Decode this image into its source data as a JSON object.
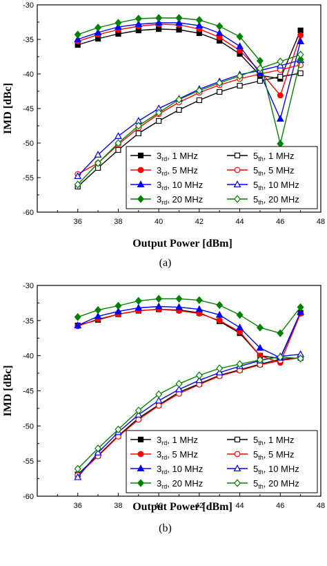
{
  "chart_data": [
    {
      "type": "line",
      "panel_label": "(a)",
      "xlabel": "Output Power [dBm]",
      "ylabel": "IMD [dBc]",
      "xlim": [
        34,
        48
      ],
      "ylim": [
        -60,
        -30
      ],
      "xticks": [
        36,
        38,
        40,
        42,
        44,
        46,
        48
      ],
      "yticks": [
        -30,
        -35,
        -40,
        -45,
        -50,
        -55,
        -60
      ],
      "grid": false,
      "legend_position": "bottom-right",
      "x": [
        36,
        37,
        38,
        39,
        40,
        41,
        42,
        43,
        44,
        45,
        46,
        47
      ],
      "series": [
        {
          "order": "3rd",
          "bw": "1 MHz",
          "color": "#000000",
          "marker": "square",
          "filled": true,
          "values": [
            -35.8,
            -34.9,
            -34.2,
            -33.7,
            -33.5,
            -33.6,
            -34.1,
            -35.2,
            -37.1,
            -40.2,
            -40.7,
            -33.7
          ]
        },
        {
          "order": "5th",
          "bw": "1 MHz",
          "color": "#000000",
          "marker": "square",
          "filled": false,
          "values": [
            -56.3,
            -53.6,
            -51.0,
            -48.6,
            -46.8,
            -45.2,
            -43.8,
            -42.6,
            -41.7,
            -41.0,
            -40.4,
            -39.9
          ]
        },
        {
          "order": "3rd",
          "bw": "5 MHz",
          "color": "#ff0000",
          "marker": "circle",
          "filled": true,
          "values": [
            -35.3,
            -34.3,
            -33.6,
            -33.1,
            -32.8,
            -32.9,
            -33.5,
            -34.7,
            -36.6,
            -39.6,
            -43.1,
            -34.4
          ]
        },
        {
          "order": "5th",
          "bw": "5 MHz",
          "color": "#ff0000",
          "marker": "circle",
          "filled": false,
          "values": [
            -54.5,
            -52.9,
            -50.2,
            -47.8,
            -45.8,
            -44.1,
            -42.7,
            -41.6,
            -40.7,
            -40.0,
            -39.4,
            -38.7
          ]
        },
        {
          "order": "3rd",
          "bw": "10 MHz",
          "color": "#0000ff",
          "marker": "triangle",
          "filled": true,
          "values": [
            -35.0,
            -34.0,
            -33.2,
            -32.8,
            -32.6,
            -32.6,
            -33.0,
            -34.1,
            -36.0,
            -39.9,
            -46.5,
            -35.3
          ]
        },
        {
          "order": "5th",
          "bw": "10 MHz",
          "color": "#0000ff",
          "marker": "triangle",
          "filled": false,
          "values": [
            -54.8,
            -51.7,
            -49.0,
            -46.8,
            -45.0,
            -43.6,
            -42.2,
            -41.1,
            -40.1,
            -39.5,
            -38.8,
            -38.0
          ]
        },
        {
          "order": "3rd",
          "bw": "20 MHz",
          "color": "#008000",
          "marker": "diamond",
          "filled": true,
          "values": [
            -34.3,
            -33.3,
            -32.6,
            -32.0,
            -31.9,
            -31.9,
            -32.2,
            -33.1,
            -34.6,
            -38.1,
            -50.1,
            -37.9
          ]
        },
        {
          "order": "5th",
          "bw": "20 MHz",
          "color": "#008000",
          "marker": "diamond",
          "filled": false,
          "values": [
            -56.0,
            -52.9,
            -50.0,
            -47.5,
            -45.6,
            -43.7,
            -42.4,
            -41.3,
            -40.3,
            -39.2,
            -38.2,
            -37.2
          ]
        }
      ]
    },
    {
      "type": "line",
      "panel_label": "(b)",
      "xlabel": "Output Power [dBm]",
      "ylabel": "IMD [dBc]",
      "xlim": [
        34,
        48
      ],
      "ylim": [
        -60,
        -30
      ],
      "xticks": [
        36,
        38,
        40,
        42,
        44,
        46,
        48
      ],
      "yticks": [
        -30,
        -35,
        -40,
        -45,
        -50,
        -55,
        -60
      ],
      "grid": false,
      "legend_position": "bottom-right",
      "x": [
        36,
        37,
        38,
        39,
        40,
        41,
        42,
        43,
        44,
        45,
        46,
        47
      ],
      "series": [
        {
          "order": "3rd",
          "bw": "1 MHz",
          "color": "#000000",
          "marker": "square",
          "filled": true,
          "values": [
            -35.7,
            -34.9,
            -34.1,
            -33.6,
            -33.4,
            -33.5,
            -33.9,
            -35.1,
            -36.8,
            -40.0,
            -40.4,
            -33.9
          ]
        },
        {
          "order": "5th",
          "bw": "1 MHz",
          "color": "#000000",
          "marker": "square",
          "filled": false,
          "values": [
            -56.9,
            -54.2,
            -51.4,
            -48.9,
            -47.0,
            -45.2,
            -44.0,
            -42.8,
            -42.0,
            -41.2,
            -40.5,
            -40.3
          ]
        },
        {
          "order": "3rd",
          "bw": "5 MHz",
          "color": "#ff0000",
          "marker": "circle",
          "filled": true,
          "values": [
            -35.8,
            -34.8,
            -34.1,
            -33.6,
            -33.4,
            -33.6,
            -34.0,
            -35.0,
            -36.6,
            -40.0,
            -41.0,
            -34.0
          ]
        },
        {
          "order": "5th",
          "bw": "5 MHz",
          "color": "#ff0000",
          "marker": "circle",
          "filled": false,
          "values": [
            -57.0,
            -54.3,
            -51.5,
            -49.1,
            -47.1,
            -45.4,
            -44.1,
            -42.9,
            -42.1,
            -41.3,
            -40.7,
            -40.3
          ]
        },
        {
          "order": "3rd",
          "bw": "10 MHz",
          "color": "#0000ff",
          "marker": "triangle",
          "filled": true,
          "values": [
            -35.7,
            -34.4,
            -33.7,
            -33.2,
            -33.0,
            -33.1,
            -33.4,
            -34.2,
            -36.0,
            -38.9,
            -40.3,
            -33.8
          ]
        },
        {
          "order": "5th",
          "bw": "10 MHz",
          "color": "#0000ff",
          "marker": "triangle",
          "filled": false,
          "values": [
            -57.3,
            -53.8,
            -50.9,
            -48.4,
            -46.4,
            -44.8,
            -43.5,
            -42.4,
            -41.5,
            -40.7,
            -40.1,
            -39.8
          ]
        },
        {
          "order": "3rd",
          "bw": "20 MHz",
          "color": "#008000",
          "marker": "diamond",
          "filled": true,
          "values": [
            -34.5,
            -33.5,
            -32.9,
            -32.2,
            -31.9,
            -31.9,
            -32.1,
            -32.8,
            -34.2,
            -36.0,
            -36.8,
            -33.1
          ]
        },
        {
          "order": "5th",
          "bw": "20 MHz",
          "color": "#008000",
          "marker": "diamond",
          "filled": false,
          "values": [
            -56.1,
            -53.2,
            -50.5,
            -47.8,
            -45.5,
            -44.0,
            -42.8,
            -41.8,
            -41.2,
            -40.6,
            -40.2,
            -40.4
          ]
        }
      ]
    }
  ]
}
